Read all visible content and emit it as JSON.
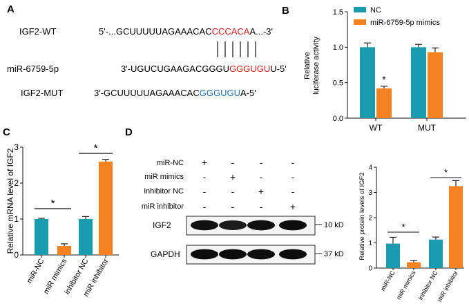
{
  "panels": {
    "A": "A",
    "B": "B",
    "C": "C",
    "D": "D"
  },
  "panel_a": {
    "wt": {
      "label": "IGF2-WT",
      "prefix": "5'-...GCUUUUUAGAAACAC",
      "site": "CCCACA",
      "suffix": "A...-3'"
    },
    "mir": {
      "label": "miR-6759-5p",
      "prefix": "3'-UGUCUGAAGACGGGU",
      "site": "GGGUGU",
      "suffix": "U-5'"
    },
    "mut": {
      "label": "IGF2-MUT",
      "prefix": "3'-GCUUUUUAGAAACAC",
      "site": "GGGUGU",
      "suffix": "A-5'"
    },
    "colors": {
      "site_wt": "#d0211d",
      "site_mir": "#d0211d",
      "site_mut": "#1f72b0"
    }
  },
  "panel_d_blot": {
    "row_labels": [
      "miR-NC",
      "miR mimics",
      "inhibitor NC",
      "miR inhibitor"
    ],
    "signs": [
      [
        "+",
        "-",
        "-",
        "-"
      ],
      [
        "-",
        "+",
        "-",
        "-"
      ],
      [
        "-",
        "-",
        "+",
        "-"
      ],
      [
        "-",
        "-",
        "-",
        "+"
      ]
    ],
    "bands": [
      {
        "name": "IGF2",
        "size": "10 kD",
        "intensities": [
          0.9,
          0.7,
          0.9,
          0.95
        ]
      },
      {
        "name": "GAPDH",
        "size": "37 kD",
        "intensities": [
          0.95,
          0.95,
          0.95,
          0.95
        ]
      }
    ]
  },
  "chart_data": [
    {
      "id": "B",
      "type": "bar",
      "categories": [
        "WT",
        "MUT"
      ],
      "series": [
        {
          "name": "NC",
          "color": "#1a9bb0",
          "values": [
            1.0,
            1.0
          ],
          "errors": [
            0.06,
            0.04
          ]
        },
        {
          "name": "miR-6759-5p mimics",
          "color": "#f58220",
          "values": [
            0.42,
            0.93
          ],
          "errors": [
            0.03,
            0.06
          ]
        }
      ],
      "ylabel": "Relative luciferase activity",
      "ylim": [
        0,
        1.5
      ],
      "yticks": [
        "0.0",
        "0.5",
        "1.0",
        "1.5"
      ],
      "significance": [
        {
          "category": "WT",
          "series": 1,
          "label": "*"
        }
      ],
      "legend": "top-right"
    },
    {
      "id": "C",
      "type": "bar",
      "categories": [
        "miR-NC",
        "miR mimics",
        "inhibitor NC",
        "miR inhibitor"
      ],
      "values": [
        1.0,
        0.25,
        1.0,
        2.6
      ],
      "errors": [
        0.02,
        0.06,
        0.07,
        0.06
      ],
      "colors": [
        "#1a9bb0",
        "#f58220",
        "#1a9bb0",
        "#f58220"
      ],
      "ylabel": "Relative mRNA level of IGF2",
      "ylim": [
        0,
        3
      ],
      "yticks": [
        "0",
        "1",
        "2",
        "3"
      ],
      "comparisons": [
        {
          "from": 0,
          "to": 1,
          "label": "*"
        },
        {
          "from": 2,
          "to": 3,
          "label": "*"
        }
      ]
    },
    {
      "id": "D",
      "type": "bar",
      "categories": [
        "miR-NC",
        "miR mimics",
        "inhibitor NC",
        "miR inhibitor"
      ],
      "values": [
        0.97,
        0.23,
        1.13,
        3.25
      ],
      "errors": [
        0.25,
        0.07,
        0.1,
        0.22
      ],
      "colors": [
        "#1a9bb0",
        "#f58220",
        "#1a9bb0",
        "#f58220"
      ],
      "ylabel": "Relative protein levels of IGF2",
      "ylim": [
        0,
        4
      ],
      "yticks": [
        "0",
        "1",
        "2",
        "3",
        "4"
      ],
      "comparisons": [
        {
          "from": 0,
          "to": 1,
          "label": "*"
        },
        {
          "from": 2,
          "to": 3,
          "label": "*"
        }
      ]
    }
  ]
}
